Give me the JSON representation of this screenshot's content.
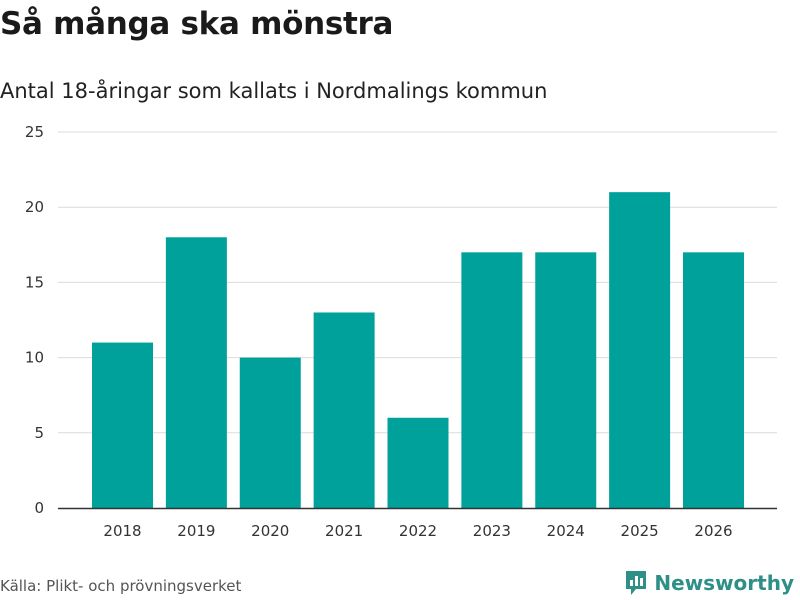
{
  "title": "Så många ska mönstra",
  "subtitle": "Antal 18-åringar som kallats i Nordmalings kommun",
  "source": "Källa: Plikt- och prövningsverket",
  "brand": {
    "name": "Newsworthy",
    "icon": "bar-chart-icon",
    "color": "#2e8f86"
  },
  "chart_data": {
    "type": "bar",
    "title": "Så många ska mönstra",
    "subtitle": "Antal 18-åringar som kallats i Nordmalings kommun",
    "xlabel": "",
    "ylabel": "",
    "categories": [
      "2018",
      "2019",
      "2020",
      "2021",
      "2022",
      "2023",
      "2024",
      "2025",
      "2026"
    ],
    "values": [
      11,
      18,
      10,
      13,
      6,
      17,
      17,
      21,
      17
    ],
    "ylim": [
      0,
      25
    ],
    "yticks": [
      "0",
      "5",
      "10",
      "15",
      "20",
      "25"
    ],
    "grid": true,
    "bar_color": "#00a19a"
  }
}
